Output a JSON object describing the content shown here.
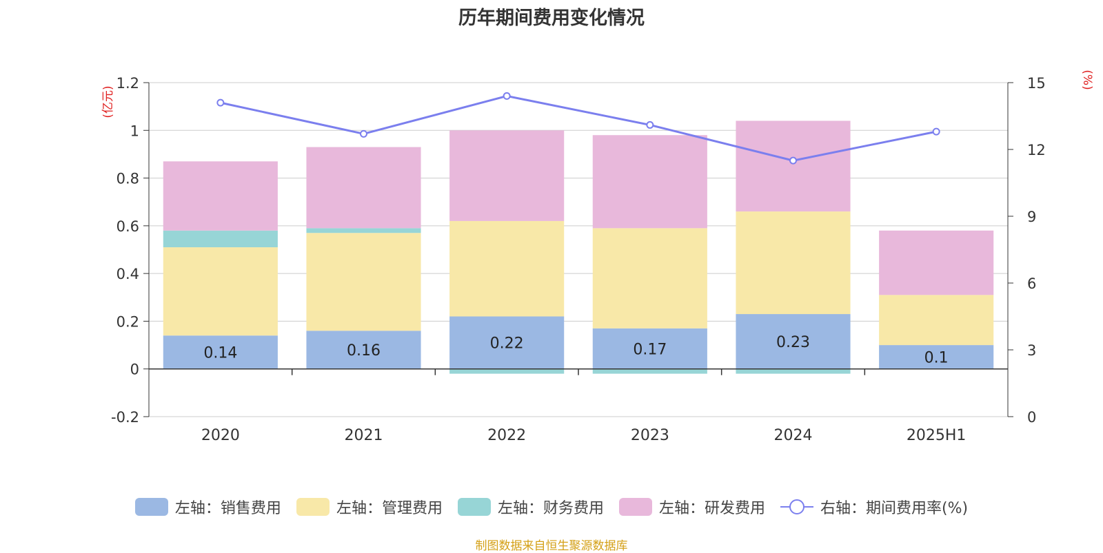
{
  "chart_data": {
    "type": "bar",
    "title": "历年期间费用变化情况",
    "categories": [
      "2020",
      "2021",
      "2022",
      "2023",
      "2024",
      "2025H1"
    ],
    "left_axis": {
      "unit_label": "(亿元)",
      "ylim": [
        -0.2,
        1.2
      ],
      "ticks": [
        "-0.2",
        "0",
        "0.2",
        "0.4",
        "0.6",
        "0.8",
        "1",
        "1.2"
      ]
    },
    "right_axis": {
      "unit_label": "(%)",
      "ylim": [
        0,
        15
      ],
      "ticks": [
        "0",
        "3",
        "6",
        "9",
        "12",
        "15"
      ]
    },
    "series": [
      {
        "name": "左轴：销售费用",
        "type": "bar",
        "axis": "left",
        "color": "#9bb8e3",
        "values": [
          0.14,
          0.16,
          0.22,
          0.17,
          0.23,
          0.1
        ],
        "labels": [
          "0.14",
          "0.16",
          "0.22",
          "0.17",
          "0.23",
          "0.1"
        ]
      },
      {
        "name": "左轴：管理费用",
        "type": "bar",
        "axis": "left",
        "color": "#f8e8a8",
        "values": [
          0.37,
          0.41,
          0.4,
          0.42,
          0.43,
          0.21
        ]
      },
      {
        "name": "左轴：财务费用",
        "type": "bar",
        "axis": "left",
        "color": "#97d5d6",
        "values": [
          0.07,
          0.02,
          -0.02,
          -0.02,
          -0.02,
          0.0
        ]
      },
      {
        "name": "左轴：研发费用",
        "type": "bar",
        "axis": "left",
        "color": "#e8b8db",
        "values": [
          0.29,
          0.34,
          0.38,
          0.39,
          0.38,
          0.27
        ]
      },
      {
        "name": "右轴：期间费用率(%)",
        "type": "line",
        "axis": "right",
        "color": "#7b7fee",
        "values": [
          14.1,
          12.7,
          14.4,
          13.1,
          11.5,
          12.8
        ]
      }
    ],
    "grid": true,
    "legend_position": "bottom"
  },
  "source_note": "制图数据来自恒生聚源数据库"
}
